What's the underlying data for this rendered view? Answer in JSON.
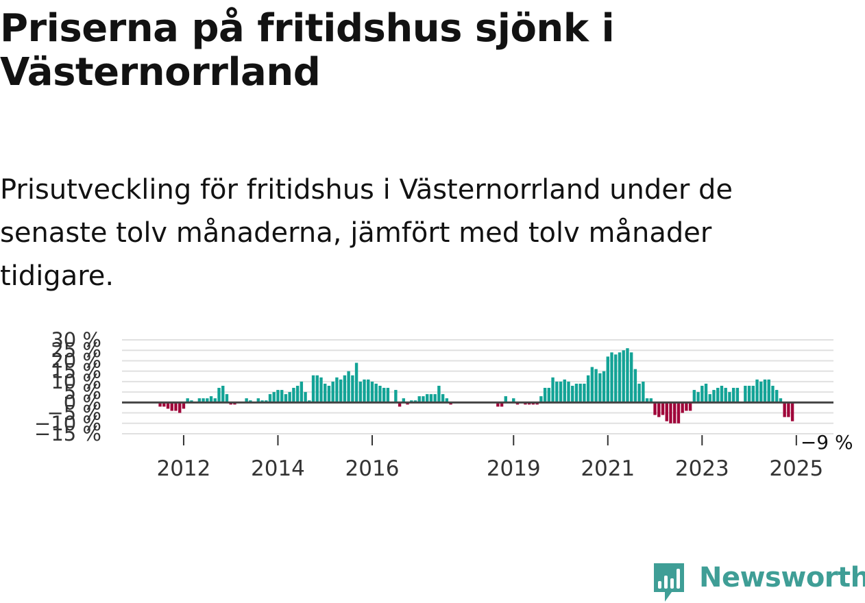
{
  "title": "Priserna på fritidshus sjönk i Västernorrland",
  "subtitle": "Prisutveckling för fritidshus i Västernorrland under de senaste tolv månaderna, jämfört med tolv månader tidigare.",
  "brand": {
    "name": "Newsworthy",
    "color": "#3f9e96"
  },
  "colors": {
    "positive": "#13a396",
    "negative": "#a0063a",
    "zero_line": "#444444",
    "grid": "#e0e0e0",
    "axis_text": "#333333"
  },
  "chart_data": {
    "type": "bar",
    "title": "Priserna på fritidshus sjönk i Västernorrland",
    "xlabel": "",
    "ylabel": "",
    "ylim": [
      -15,
      30
    ],
    "y_ticks": [
      -15,
      -10,
      -5,
      0,
      5,
      10,
      15,
      20,
      25,
      30
    ],
    "y_tick_labels": [
      "−15 %",
      "−10 %",
      "−5 %",
      "0 %",
      "5 %",
      "10 %",
      "15 %",
      "20 %",
      "25 %",
      "30 %"
    ],
    "start": "2011-01",
    "unit": "%",
    "x_ticks": [
      {
        "label": "2012",
        "month_index": 15
      },
      {
        "label": "2014",
        "month_index": 39
      },
      {
        "label": "2016",
        "month_index": 63
      },
      {
        "label": "2019",
        "month_index": 99
      },
      {
        "label": "2021",
        "month_index": 123
      },
      {
        "label": "2023",
        "month_index": 147
      },
      {
        "label": "2025",
        "month_index": 171
      }
    ],
    "annotation": {
      "text": "−9 %",
      "month_index": 171,
      "value": -9
    },
    "values": [
      0,
      0,
      0,
      0,
      0,
      0,
      0,
      0,
      0,
      -2,
      -2,
      -3,
      -4,
      -4,
      -5,
      -3,
      2,
      1,
      0,
      2,
      2,
      2,
      3,
      2,
      7,
      8,
      4,
      -1,
      -1,
      0,
      0,
      2,
      1,
      0,
      2,
      1,
      1,
      4,
      5,
      6,
      6,
      4,
      5,
      7,
      8,
      10,
      5,
      1,
      13,
      13,
      12,
      9,
      8,
      10,
      12,
      11,
      13,
      15,
      13,
      19,
      10,
      11,
      11,
      10,
      9,
      8,
      7,
      7,
      0,
      6,
      -2,
      2,
      -1,
      1,
      1,
      3,
      3,
      4,
      4,
      4,
      8,
      4,
      2,
      -1,
      0,
      0,
      0,
      0,
      0,
      0,
      0,
      0,
      0,
      0,
      0,
      -2,
      -2,
      3,
      0,
      2,
      -1,
      0,
      -1,
      -1,
      -1,
      -1,
      3,
      7,
      7,
      12,
      10,
      10,
      11,
      10,
      8,
      9,
      9,
      9,
      13,
      17,
      16,
      14,
      15,
      22,
      24,
      23,
      24,
      25,
      26,
      24,
      16,
      9,
      10,
      2,
      2,
      -6,
      -7,
      -6,
      -9,
      -10,
      -10,
      -10,
      -5,
      -4,
      -4,
      6,
      5,
      8,
      9,
      4,
      6,
      7,
      8,
      7,
      5,
      7,
      7,
      0,
      8,
      8,
      8,
      11,
      10,
      11,
      11,
      8,
      6,
      2,
      -7,
      -7,
      -9
    ]
  }
}
